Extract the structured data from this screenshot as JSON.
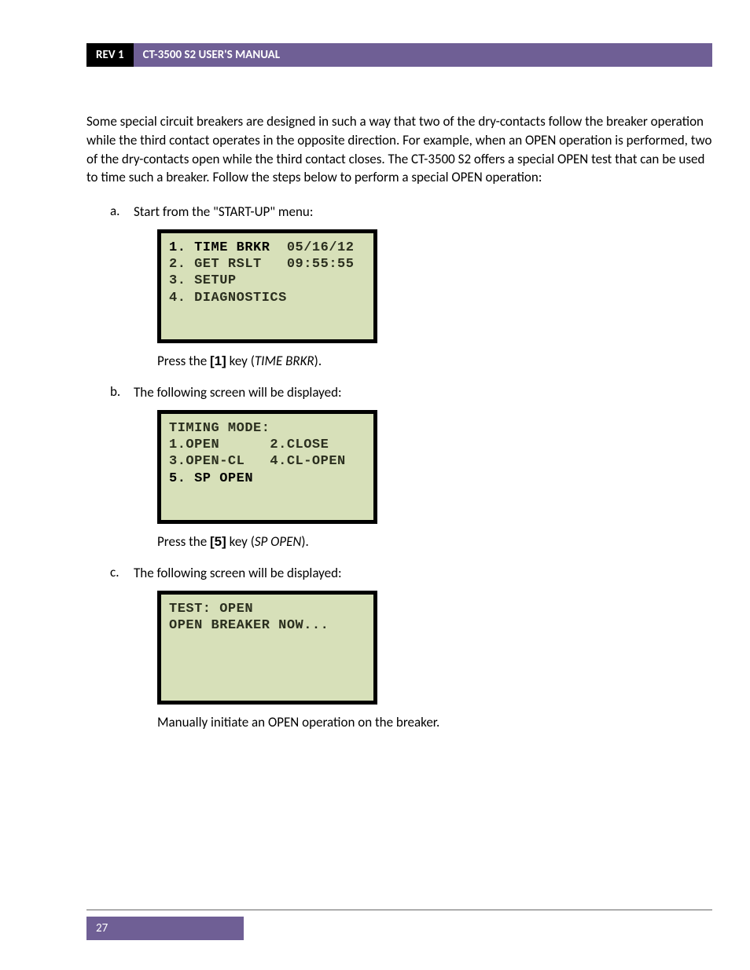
{
  "header": {
    "rev": "REV 1",
    "title": "CT-3500 S2 USER'S MANUAL"
  },
  "intro": "Some special circuit breakers are designed in such a way that two of the dry-contacts follow the breaker operation while the third contact operates in the opposite direction. For example, when an OPEN operation is performed, two of the dry-contacts open while the third contact closes. The CT-3500 S2 offers a special OPEN test that can be used to time such a breaker. Follow the steps below to perform a special OPEN operation:",
  "steps": {
    "a": {
      "letter": "a.",
      "text": "Start from the \"START-UP\" menu:",
      "lcd": {
        "l1a": "1. TIME BRKR",
        "l1b": "05/16/12",
        "l2a": "2. GET RSLT",
        "l2b": "09:55:55",
        "l3": "3. SETUP",
        "l4": "4. DIAGNOSTICS"
      },
      "instr_pre": "Press the ",
      "instr_key": "[1]",
      "instr_mid": " key (",
      "instr_italic": "TIME BRKR",
      "instr_post": ")."
    },
    "b": {
      "letter": "b.",
      "text": "The following screen will be displayed:",
      "lcd": {
        "l1": "TIMING MODE:",
        "l2": "",
        "l3": "1.OPEN      2.CLOSE",
        "l4": "3.OPEN-CL   4.CL-OPEN",
        "l5": "5. SP OPEN"
      },
      "instr_pre": "Press the ",
      "instr_key": "[5]",
      "instr_mid": " key (",
      "instr_italic": "SP OPEN",
      "instr_post": ")."
    },
    "c": {
      "letter": "c.",
      "text": "The following screen will be displayed:",
      "lcd": {
        "l1": "TEST: OPEN",
        "l2": "",
        "l3": "OPEN BREAKER NOW..."
      },
      "instr": "Manually initiate an OPEN operation on the breaker."
    }
  },
  "footer": {
    "page": "27"
  },
  "colors": {
    "header_purple": "#6f5f95",
    "header_black": "#000000",
    "lcd_bg": "#d7e0b9",
    "lcd_border": "#000000",
    "text": "#000000"
  }
}
